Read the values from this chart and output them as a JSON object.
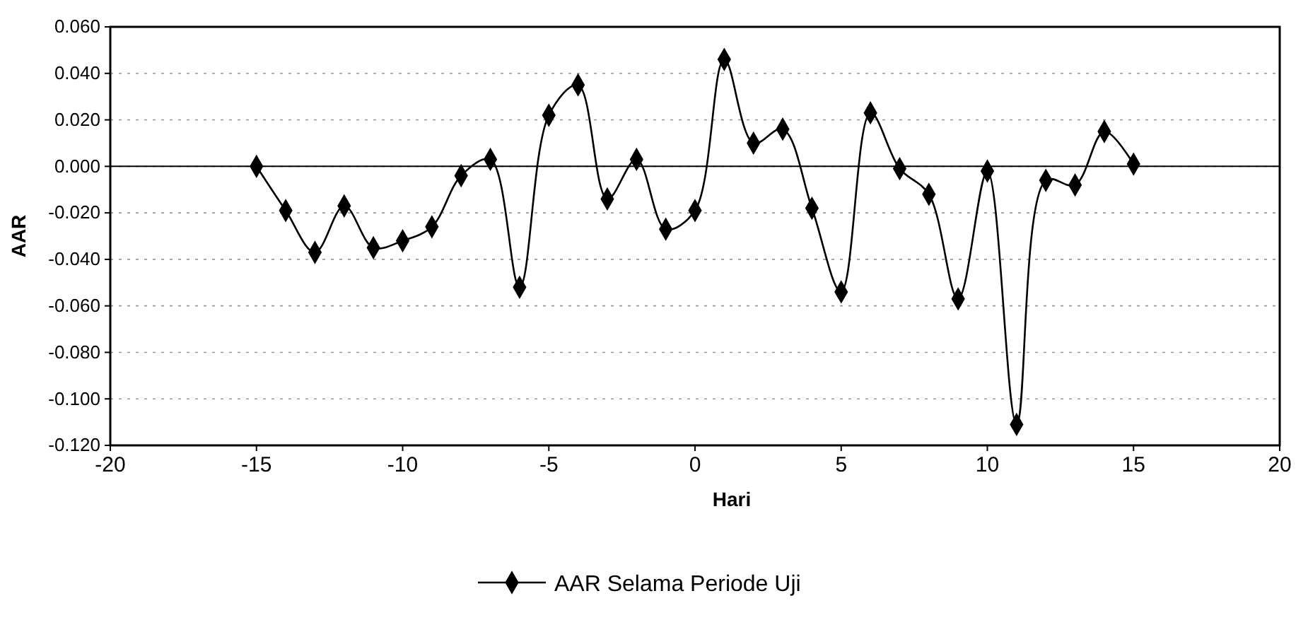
{
  "chart_data": {
    "type": "line",
    "xlabel": "Hari",
    "ylabel": "AAR",
    "x": [
      -15,
      -14,
      -13,
      -12,
      -11,
      -10,
      -9,
      -8,
      -7,
      -6,
      -5,
      -4,
      -3,
      -2,
      -1,
      0,
      1,
      2,
      3,
      4,
      5,
      6,
      7,
      8,
      9,
      10,
      11,
      12,
      13,
      14,
      15
    ],
    "series": [
      {
        "name": "AAR Selama Periode Uji",
        "color": "#000000",
        "values": [
          0.0,
          -0.019,
          -0.037,
          -0.017,
          -0.035,
          -0.032,
          -0.026,
          -0.004,
          0.003,
          -0.052,
          0.022,
          0.035,
          -0.014,
          0.003,
          -0.027,
          -0.019,
          0.046,
          0.01,
          0.016,
          -0.018,
          -0.054,
          0.023,
          -0.001,
          -0.012,
          -0.057,
          -0.002,
          -0.111,
          -0.006,
          -0.008,
          0.015,
          0.001
        ]
      }
    ],
    "xlim": [
      -20,
      20
    ],
    "xticks": [
      -20,
      -15,
      -10,
      -5,
      0,
      5,
      10,
      15,
      20
    ],
    "ylim": [
      -0.12,
      0.06
    ],
    "yticks": [
      {
        "value": -0.12,
        "label": "-0.120"
      },
      {
        "value": -0.1,
        "label": "-0.100"
      },
      {
        "value": -0.08,
        "label": "-0.080"
      },
      {
        "value": -0.06,
        "label": "-0.060"
      },
      {
        "value": -0.04,
        "label": "-0.040"
      },
      {
        "value": -0.02,
        "label": "-0.020"
      },
      {
        "value": 0,
        "label": "0.000"
      },
      {
        "value": 0.02,
        "label": "0.020"
      },
      {
        "value": 0.04,
        "label": "0.040"
      },
      {
        "value": 0.06,
        "label": "0.060"
      }
    ],
    "grid": "y",
    "legend": "bottom",
    "marker": "diamond",
    "line_style": "solid"
  }
}
